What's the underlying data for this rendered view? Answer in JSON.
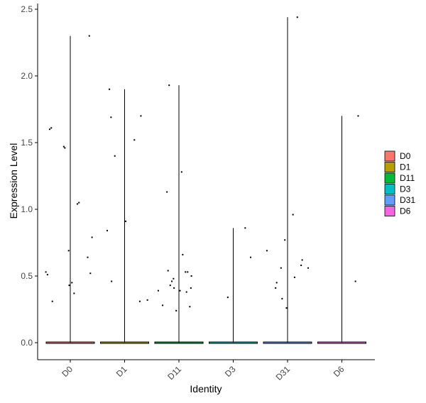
{
  "chart_data": {
    "type": "violin",
    "xlabel": "Identity",
    "ylabel": "Expression Level",
    "ylim": [
      -0.12,
      2.55
    ],
    "yticks": [
      0.0,
      0.5,
      1.0,
      1.5,
      2.0,
      2.5
    ],
    "ytick_labels": [
      "0.0",
      "0.5",
      "1.0",
      "1.5",
      "2.0",
      "2.5"
    ],
    "categories": [
      "D0",
      "D1",
      "D11",
      "D3",
      "D31",
      "D6"
    ],
    "legend_title": "",
    "legend_position": "right",
    "legend": [
      {
        "label": "D0",
        "color": "#F8766D"
      },
      {
        "label": "D1",
        "color": "#B79F00"
      },
      {
        "label": "D11",
        "color": "#00BA38"
      },
      {
        "label": "D3",
        "color": "#00BFC4"
      },
      {
        "label": "D31",
        "color": "#619CFF"
      },
      {
        "label": "D6",
        "color": "#F564E3"
      }
    ],
    "series": [
      {
        "category": "D0",
        "max": 2.3,
        "points": [
          [
            -0.45,
            0.53
          ],
          [
            -0.42,
            0.51
          ],
          [
            -0.38,
            1.6
          ],
          [
            -0.35,
            1.61
          ],
          [
            -0.33,
            0.31
          ],
          [
            -0.12,
            1.47
          ],
          [
            -0.1,
            1.46
          ],
          [
            -0.03,
            0.69
          ],
          [
            -0.02,
            0.43
          ],
          [
            0.03,
            0.45
          ],
          [
            0.07,
            0.37
          ],
          [
            0.13,
            1.04
          ],
          [
            0.16,
            1.05
          ],
          [
            0.32,
            0.64
          ],
          [
            0.35,
            2.3
          ],
          [
            0.37,
            0.52
          ],
          [
            0.4,
            0.79
          ]
        ]
      },
      {
        "category": "D1",
        "max": 1.9,
        "points": [
          [
            -0.32,
            0.84
          ],
          [
            -0.28,
            1.9
          ],
          [
            -0.25,
            1.69
          ],
          [
            -0.24,
            0.46
          ],
          [
            -0.18,
            1.4
          ],
          [
            0.02,
            0.91
          ],
          [
            0.18,
            1.52
          ],
          [
            0.28,
            0.31
          ],
          [
            0.3,
            1.7
          ],
          [
            0.42,
            0.32
          ]
        ]
      },
      {
        "category": "D11",
        "max": 1.93,
        "points": [
          [
            -0.38,
            0.39
          ],
          [
            -0.3,
            0.28
          ],
          [
            -0.22,
            1.13
          ],
          [
            -0.2,
            0.54
          ],
          [
            -0.18,
            1.93
          ],
          [
            -0.16,
            0.43
          ],
          [
            -0.13,
            0.46
          ],
          [
            -0.1,
            0.48
          ],
          [
            -0.09,
            0.41
          ],
          [
            -0.05,
            0.24
          ],
          [
            0.02,
            0.39
          ],
          [
            0.05,
            1.28
          ],
          [
            0.07,
            0.66
          ],
          [
            0.12,
            0.53
          ],
          [
            0.14,
            0.38
          ],
          [
            0.16,
            0.53
          ],
          [
            0.2,
            0.27
          ],
          [
            0.22,
            0.41
          ],
          [
            0.23,
            0.5
          ]
        ]
      },
      {
        "category": "D3",
        "max": 0.86,
        "points": [
          [
            -0.1,
            0.34
          ],
          [
            0.22,
            0.86
          ],
          [
            0.32,
            0.64
          ]
        ]
      },
      {
        "category": "D31",
        "max": 2.44,
        "points": [
          [
            -0.38,
            0.69
          ],
          [
            -0.22,
            0.41
          ],
          [
            -0.2,
            0.45
          ],
          [
            -0.12,
            0.56
          ],
          [
            -0.1,
            0.33
          ],
          [
            -0.05,
            0.77
          ],
          [
            -0.02,
            0.26
          ],
          [
            0.1,
            0.96
          ],
          [
            0.13,
            0.49
          ],
          [
            0.18,
            2.44
          ],
          [
            0.25,
            0.58
          ],
          [
            0.27,
            0.62
          ],
          [
            0.38,
            0.56
          ]
        ]
      },
      {
        "category": "D6",
        "max": 1.7,
        "points": [
          [
            0.25,
            0.46
          ],
          [
            0.3,
            1.7
          ]
        ]
      }
    ]
  }
}
